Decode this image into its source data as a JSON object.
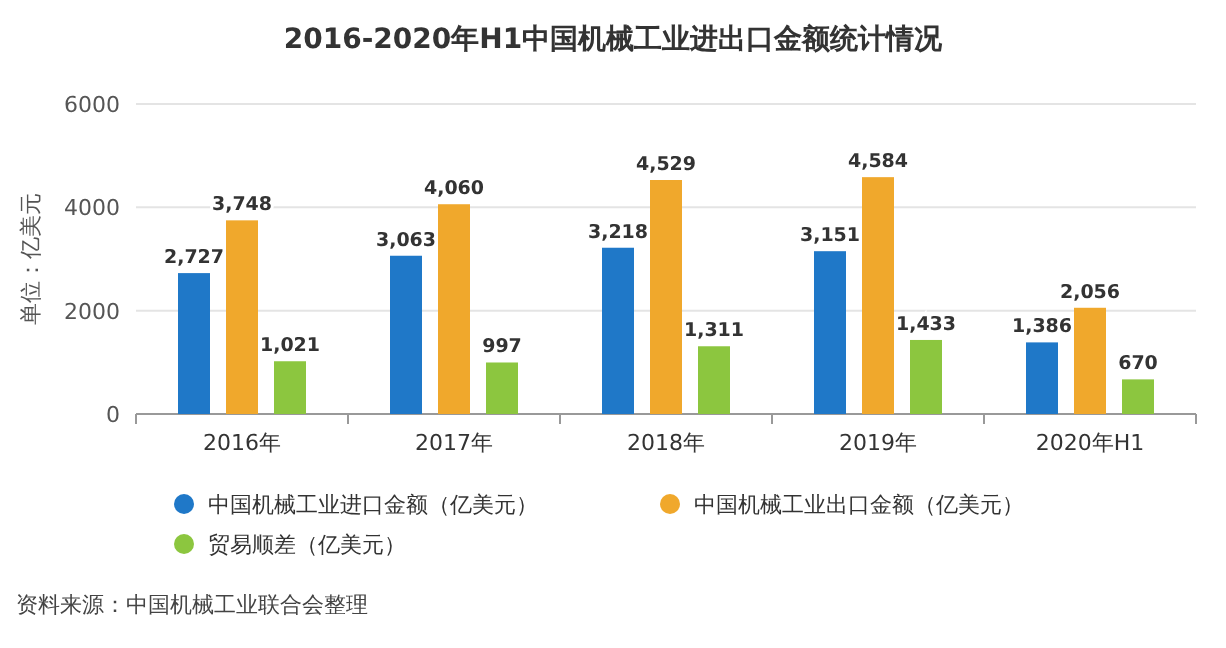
{
  "chart_data": {
    "type": "bar",
    "title": "2016-2020年H1中国机械工业进出口金额统计情况",
    "ylabel": "单位：亿美元",
    "categories": [
      "2016年",
      "2017年",
      "2018年",
      "2019年",
      "2020年H1"
    ],
    "series": [
      {
        "name": "中国机械工业进口金额（亿美元）",
        "color": "#1f78c8",
        "values": [
          2727,
          3063,
          3218,
          3151,
          1386
        ],
        "value_labels": [
          "2,727",
          "3,063",
          "3,218",
          "3,151",
          "1,386"
        ]
      },
      {
        "name": "中国机械工业出口金额（亿美元）",
        "color": "#f0a82c",
        "values": [
          3748,
          4060,
          4529,
          4584,
          2056
        ],
        "value_labels": [
          "3,748",
          "4,060",
          "4,529",
          "4,584",
          "2,056"
        ]
      },
      {
        "name": "贸易顺差（亿美元）",
        "color": "#8cc63f",
        "values": [
          1021,
          997,
          1311,
          1433,
          670
        ],
        "value_labels": [
          "1,021",
          "997",
          "1,311",
          "1,433",
          "670"
        ]
      }
    ],
    "ylim": [
      0,
      6000
    ],
    "yticks": [
      0,
      2000,
      4000,
      6000
    ],
    "grid": "y",
    "legend": "bottom",
    "annotations": [
      "资料来源：中国机械工业联合会整理"
    ]
  }
}
